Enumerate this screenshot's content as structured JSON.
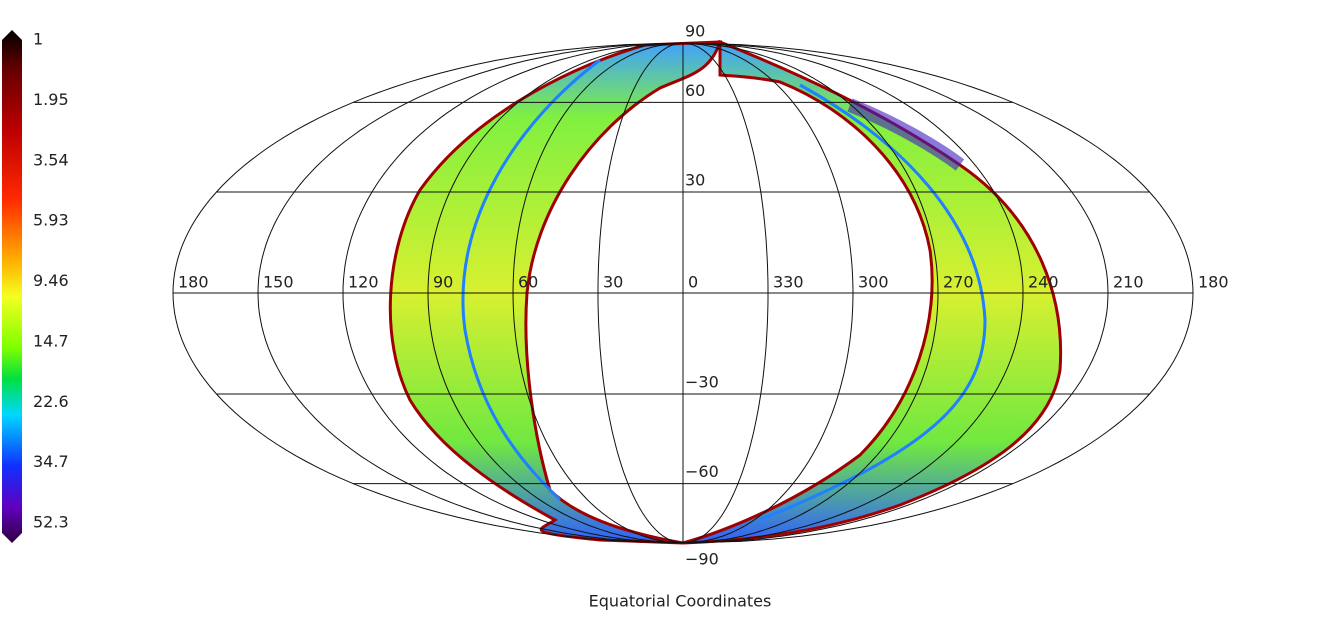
{
  "colorbar": {
    "ticks": [
      1,
      1.95,
      3.54,
      5.93,
      9.46,
      14.7,
      22.6,
      34.7,
      52.3
    ]
  },
  "map": {
    "lon_labels": [
      180,
      150,
      120,
      90,
      60,
      30,
      0,
      330,
      300,
      270,
      240,
      210,
      180
    ],
    "lat_labels": [
      {
        "value": 90,
        "label": "90"
      },
      {
        "value": 60,
        "label": "60"
      },
      {
        "value": 30,
        "label": "30"
      },
      {
        "value": -30,
        "label": "−30"
      },
      {
        "value": -60,
        "label": "−60"
      },
      {
        "value": -90,
        "label": "−90"
      }
    ],
    "xlabel": "Equatorial Coordinates"
  }
}
